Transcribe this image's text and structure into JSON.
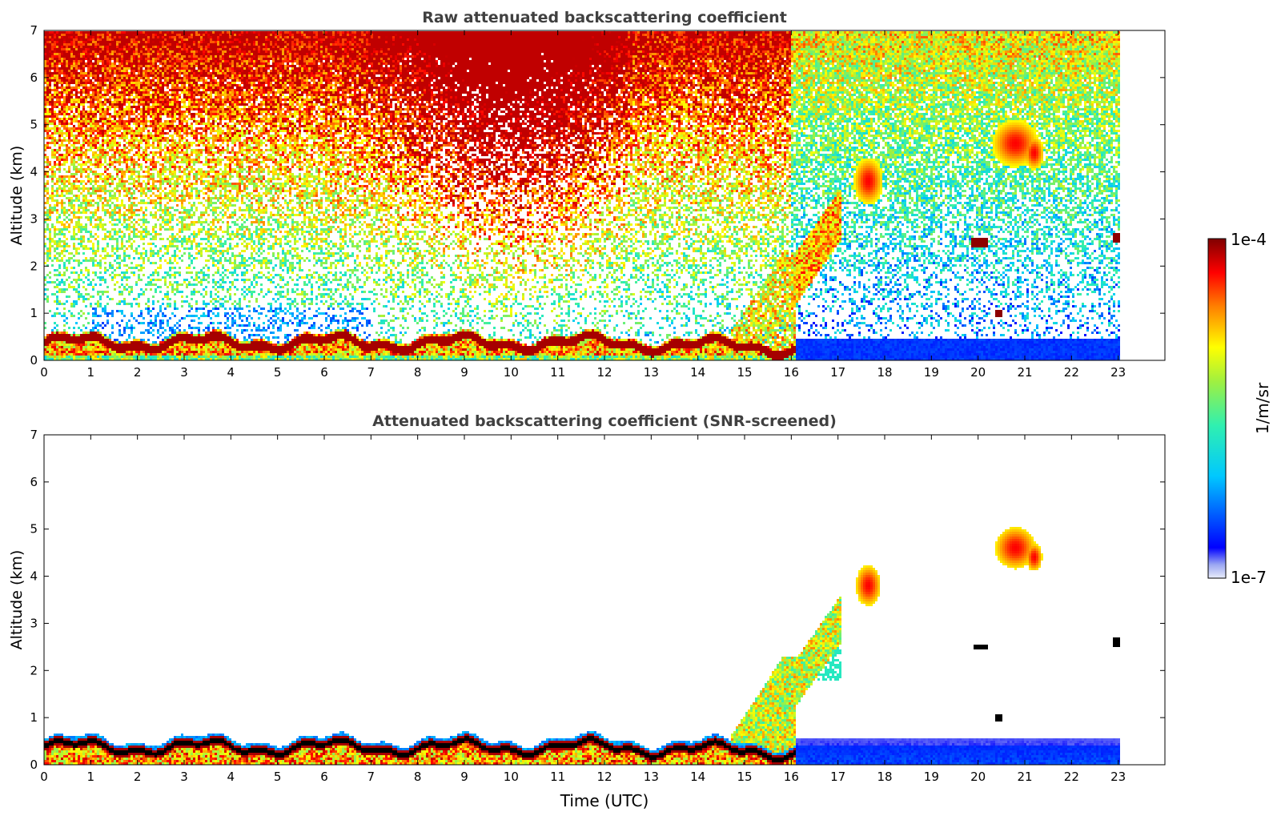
{
  "figure": {
    "xlabel": "Time (UTC)",
    "colorbar": {
      "label": "1/m/sr",
      "max_label": "1e-4",
      "min_label": "1e-7",
      "vmin": 1e-07,
      "vmax": 0.0001,
      "scale": "log",
      "colormap": "jet"
    }
  },
  "chart_data": [
    {
      "type": "heatmap",
      "title": "Raw attenuated backscattering coefficient",
      "xlabel": "",
      "ylabel": "Altitude (km)",
      "xlim": [
        0,
        24
      ],
      "ylim": [
        0,
        7
      ],
      "xticks": [
        0,
        1,
        2,
        3,
        4,
        5,
        6,
        7,
        8,
        9,
        10,
        11,
        12,
        13,
        14,
        15,
        16,
        17,
        18,
        19,
        20,
        21,
        22,
        23
      ],
      "yticks": [
        0,
        1,
        2,
        3,
        4,
        5,
        6,
        7
      ],
      "data_end_time": 23.05,
      "features": [
        {
          "feature": "boundary layer / fog top",
          "time_range": [
            0,
            16
          ],
          "altitude_km": [
            0.2,
            0.6
          ]
        },
        {
          "feature": "lofted aerosol plumes",
          "time_range": [
            14.7,
            16.2
          ],
          "altitude_km": [
            0,
            2.5
          ]
        },
        {
          "feature": "cloud layer rising",
          "time_range": [
            16,
            17.1
          ],
          "altitude_km": [
            1.5,
            3.8
          ]
        },
        {
          "feature": "cloud",
          "time_range": [
            17.3,
            18
          ],
          "altitude_km": [
            3.4,
            4.4
          ]
        },
        {
          "feature": "cloud",
          "time_range": [
            20.2,
            21.4
          ],
          "altitude_km": [
            4,
            5.5
          ]
        },
        {
          "feature": "dense cloud",
          "time": 20.05,
          "altitude_km": 2.5
        },
        {
          "feature": "dense cloud",
          "time": 20.45,
          "altitude_km": 1.0
        },
        {
          "feature": "dense cloud",
          "time": 23.0,
          "altitude_km": 2.6
        }
      ]
    },
    {
      "type": "heatmap",
      "title": "Attenuated backscattering coefficient (SNR-screened)",
      "xlabel": "Time (UTC)",
      "ylabel": "Altitude (km)",
      "xlim": [
        0,
        24
      ],
      "ylim": [
        0,
        7
      ],
      "xticks": [
        0,
        1,
        2,
        3,
        4,
        5,
        6,
        7,
        8,
        9,
        10,
        11,
        12,
        13,
        14,
        15,
        16,
        17,
        18,
        19,
        20,
        21,
        22,
        23
      ],
      "yticks": [
        0,
        1,
        2,
        3,
        4,
        5,
        6,
        7
      ],
      "data_end_time": 23.05
    }
  ]
}
